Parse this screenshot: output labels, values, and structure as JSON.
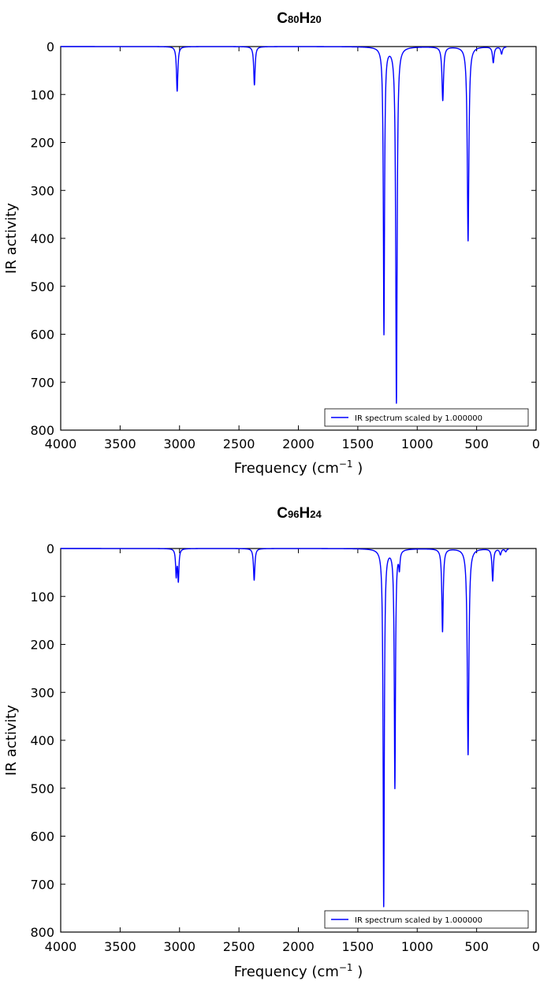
{
  "chart_data": [
    {
      "type": "line",
      "title": "C80H20",
      "title_parts": {
        "main1": "C",
        "sub1": "80",
        "main2": "H",
        "sub2": "20"
      },
      "xlabel_main": "Frequency (cm",
      "xlabel_sup": "−1",
      "xlabel_end": ")",
      "ylabel": "IR activity",
      "xlim": [
        4000,
        0
      ],
      "ylim": [
        0,
        800
      ],
      "y_inverted": true,
      "xticks": [
        4000,
        3500,
        3000,
        2500,
        2000,
        1500,
        1000,
        500,
        0
      ],
      "yticks": [
        0,
        100,
        200,
        300,
        400,
        500,
        600,
        700,
        800
      ],
      "legend": {
        "label": "IR spectrum scaled by 1.000000",
        "position": "lower-right"
      },
      "line_color": "#0000ff",
      "grid": false,
      "x_range_drawn": [
        4000,
        250
      ],
      "peaks": [
        {
          "x": 3020,
          "y": 93,
          "w": 7
        },
        {
          "x": 2370,
          "y": 80,
          "w": 7
        },
        {
          "x": 1280,
          "y": 598,
          "w": 6
        },
        {
          "x": 1175,
          "y": 742,
          "w": 7
        },
        {
          "x": 785,
          "y": 112,
          "w": 8
        },
        {
          "x": 572,
          "y": 405,
          "w": 8
        },
        {
          "x": 360,
          "y": 33,
          "w": 8
        },
        {
          "x": 290,
          "y": 15,
          "w": 8
        }
      ]
    },
    {
      "type": "line",
      "title": "C96H24",
      "title_parts": {
        "main1": "C",
        "sub1": "96",
        "main2": "H",
        "sub2": "24"
      },
      "xlabel_main": "Frequency (cm",
      "xlabel_sup": "−1",
      "xlabel_end": ")",
      "ylabel": "IR activity",
      "xlim": [
        4000,
        0
      ],
      "ylim": [
        0,
        800
      ],
      "y_inverted": true,
      "xticks": [
        4000,
        3500,
        3000,
        2500,
        2000,
        1500,
        1000,
        500,
        0
      ],
      "yticks": [
        0,
        100,
        200,
        300,
        400,
        500,
        600,
        700,
        800
      ],
      "legend": {
        "label": "IR spectrum scaled by 1.000000",
        "position": "lower-right"
      },
      "line_color": "#0000ff",
      "grid": false,
      "x_range_drawn": [
        4000,
        230
      ],
      "peaks": [
        {
          "x": 3028,
          "y": 55,
          "w": 6
        },
        {
          "x": 3010,
          "y": 65,
          "w": 6
        },
        {
          "x": 2372,
          "y": 66,
          "w": 7
        },
        {
          "x": 1282,
          "y": 745,
          "w": 6
        },
        {
          "x": 1188,
          "y": 497,
          "w": 6
        },
        {
          "x": 1150,
          "y": 35,
          "w": 6
        },
        {
          "x": 787,
          "y": 173,
          "w": 7
        },
        {
          "x": 572,
          "y": 430,
          "w": 8
        },
        {
          "x": 365,
          "y": 67,
          "w": 7
        },
        {
          "x": 300,
          "y": 12,
          "w": 8
        },
        {
          "x": 255,
          "y": 6,
          "w": 8
        }
      ]
    }
  ]
}
